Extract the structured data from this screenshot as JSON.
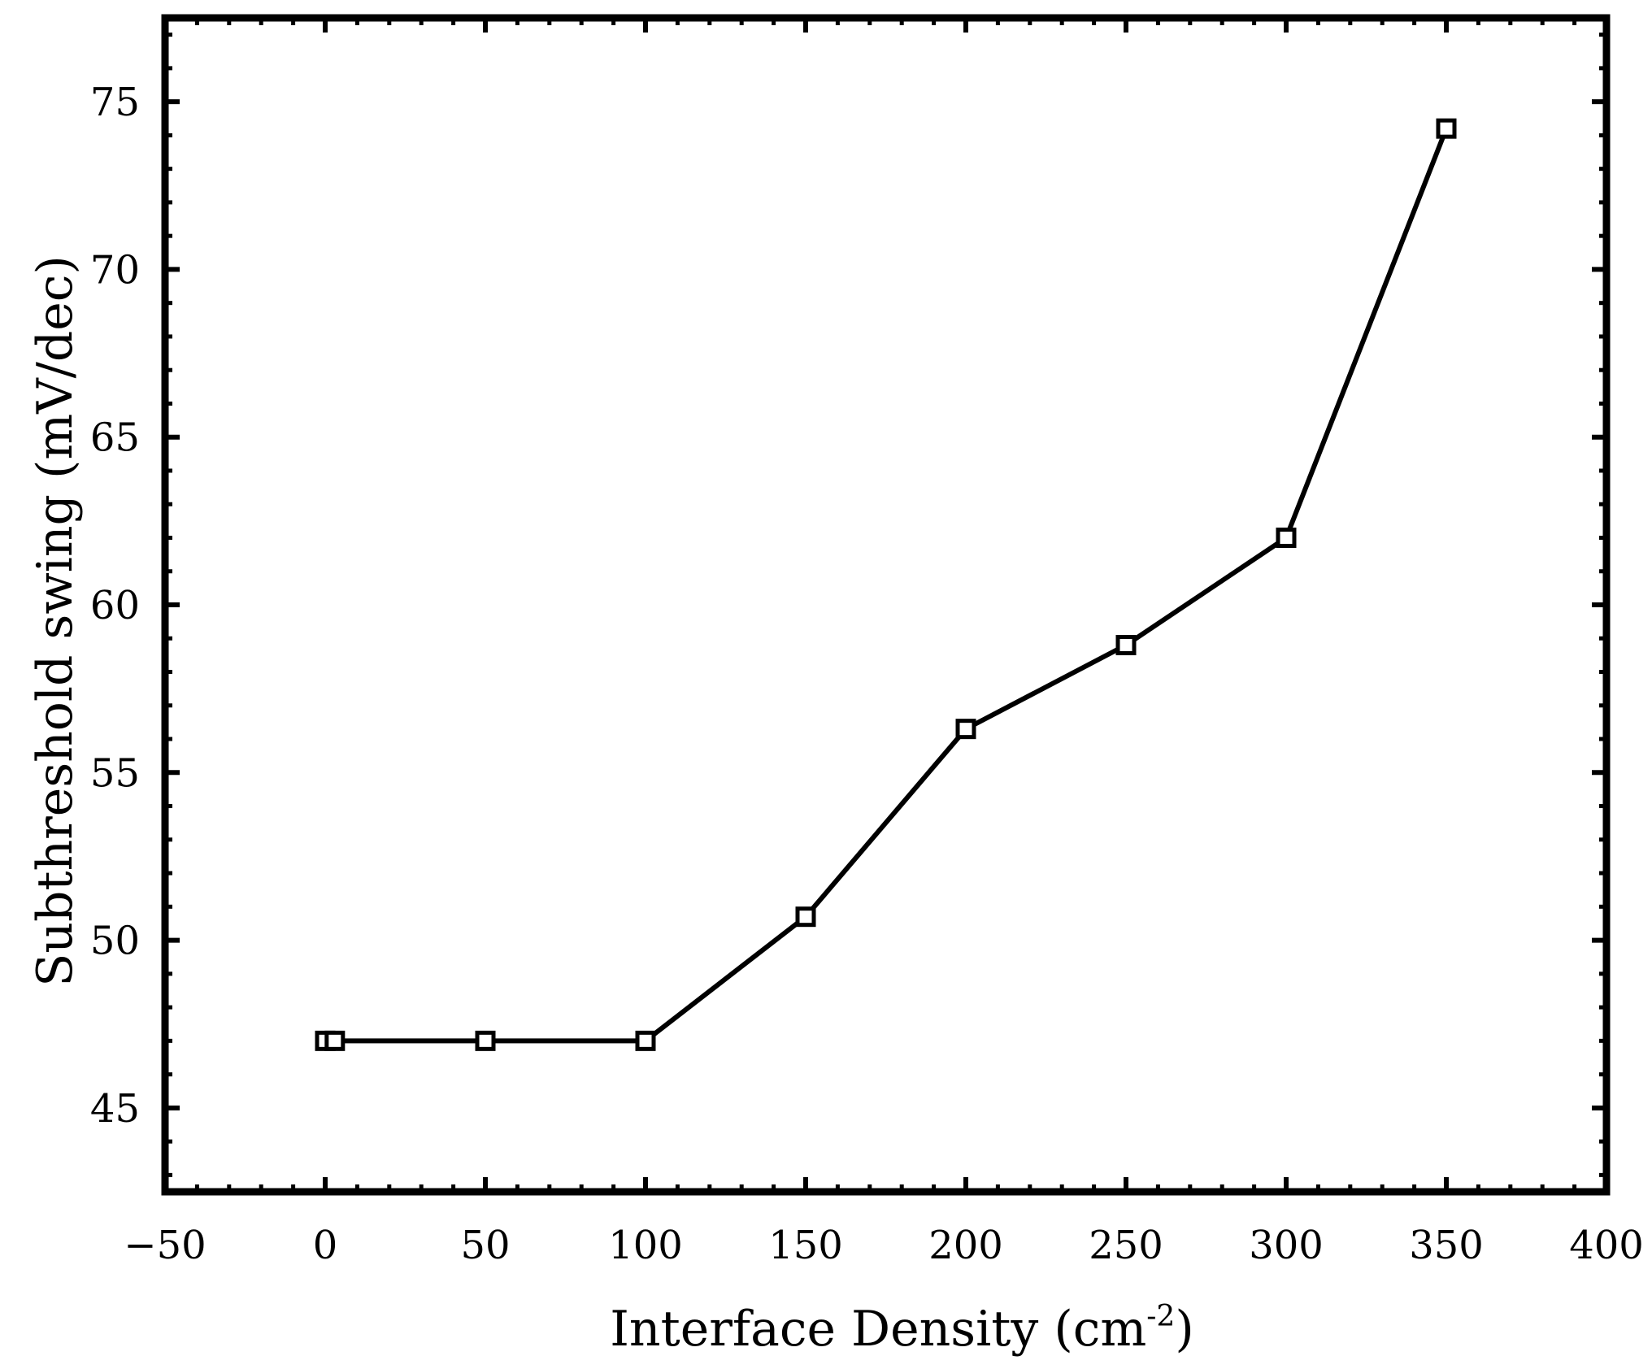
{
  "chart_data": {
    "type": "line",
    "title": "",
    "xlabel": "Interface Density (cm",
    "xlabel_sup": "-2",
    "xlabel_close": ")",
    "ylabel": "Subthreshold swing (mV/dec)",
    "xlim": [
      -50,
      400
    ],
    "ylim": [
      42.5,
      77.5
    ],
    "xticks": [
      -50,
      0,
      50,
      100,
      150,
      200,
      250,
      300,
      350,
      400
    ],
    "xtick_labels": [
      "−50",
      "0",
      "50",
      "100",
      "150",
      "200",
      "250",
      "300",
      "350",
      "400"
    ],
    "yticks": [
      45,
      50,
      55,
      60,
      65,
      70,
      75
    ],
    "ytick_labels": [
      "45",
      "50",
      "55",
      "60",
      "65",
      "70",
      "75"
    ],
    "grid": false,
    "legend": "none",
    "series": [
      {
        "marker": "square-open",
        "color": "#000000",
        "x": [
          0,
          3,
          50,
          100,
          150,
          200,
          250,
          300,
          350
        ],
        "y": [
          47.0,
          47.0,
          47.0,
          47.0,
          50.7,
          56.3,
          58.8,
          62.0,
          74.2
        ]
      }
    ]
  }
}
